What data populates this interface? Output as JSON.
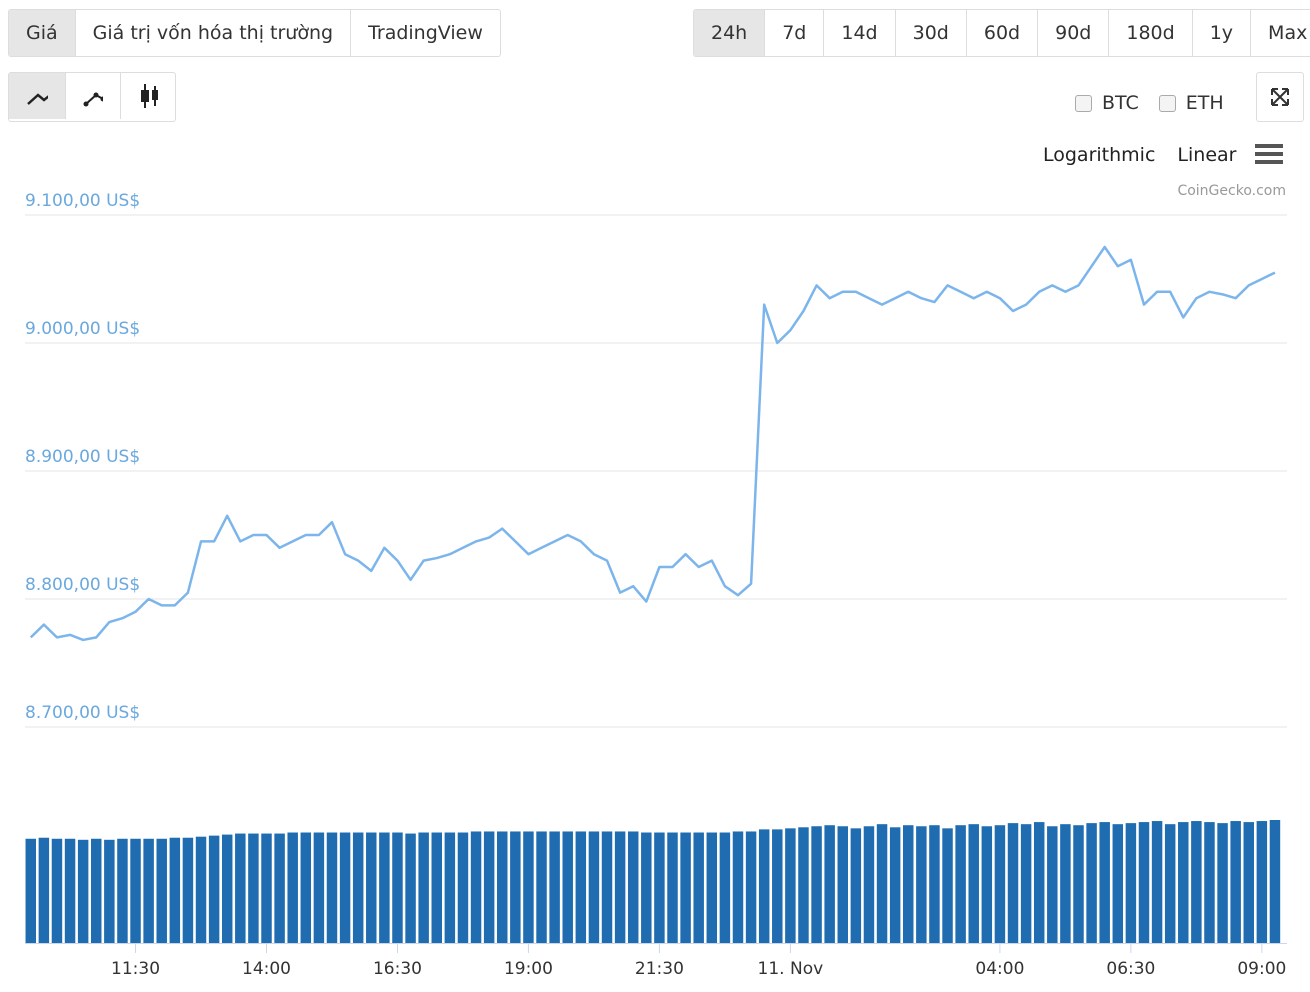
{
  "tabs": [
    "Giá",
    "Giá trị vốn hóa thị trường",
    "TradingView"
  ],
  "ranges": [
    "24h",
    "7d",
    "14d",
    "30d",
    "60d",
    "90d",
    "180d",
    "1y",
    "Max"
  ],
  "compare": [
    "BTC",
    "ETH"
  ],
  "scales": [
    "Logarithmic",
    "Linear"
  ],
  "chart_data": {
    "type": "line",
    "credit": "CoinGecko.com",
    "color": "#7cb5ec",
    "grid": true,
    "x": [
      9.5,
      9.75,
      10,
      10.25,
      10.5,
      10.75,
      11,
      11.25,
      11.5,
      11.75,
      12,
      12.25,
      12.5,
      12.75,
      13,
      13.25,
      13.5,
      13.75,
      14,
      14.25,
      14.5,
      14.75,
      15,
      15.25,
      15.5,
      15.75,
      16,
      16.25,
      16.5,
      16.75,
      17,
      17.25,
      17.5,
      17.75,
      18,
      18.25,
      18.5,
      18.75,
      19,
      19.25,
      19.5,
      19.75,
      20,
      20.25,
      20.5,
      20.75,
      21,
      21.25,
      21.5,
      21.75,
      22,
      22.25,
      22.5,
      22.75,
      23,
      23.25,
      23.5,
      23.75,
      24,
      24.25,
      24.5,
      24.75,
      25,
      25.25,
      25.5,
      25.75,
      26,
      26.25,
      26.5,
      26.75,
      27,
      27.25,
      27.5,
      27.75,
      28,
      28.25,
      28.5,
      28.75,
      29,
      29.25,
      29.5,
      29.75,
      30,
      30.25,
      30.5,
      30.75,
      31,
      31.25,
      31.5,
      31.75,
      32,
      32.25,
      32.5,
      32.75,
      33,
      33.25
    ],
    "values": [
      8770,
      8780,
      8770,
      8772,
      8768,
      8770,
      8782,
      8785,
      8790,
      8800,
      8795,
      8795,
      8805,
      8845,
      8845,
      8865,
      8845,
      8850,
      8850,
      8840,
      8845,
      8850,
      8850,
      8860,
      8835,
      8830,
      8822,
      8840,
      8830,
      8815,
      8830,
      8832,
      8835,
      8840,
      8845,
      8848,
      8855,
      8845,
      8835,
      8840,
      8845,
      8850,
      8845,
      8835,
      8830,
      8805,
      8810,
      8798,
      8825,
      8825,
      8835,
      8825,
      8830,
      8810,
      8803,
      8812,
      9030,
      9000,
      9010,
      9025,
      9045,
      9035,
      9040,
      9040,
      9035,
      9030,
      9035,
      9040,
      9035,
      9032,
      9045,
      9040,
      9035,
      9040,
      9035,
      9025,
      9030,
      9040,
      9045,
      9040,
      9045,
      9060,
      9075,
      9060,
      9065,
      9030,
      9040,
      9040,
      9020,
      9035,
      9040,
      9038,
      9035,
      9045,
      9050,
      9055
    ],
    "xlim": [
      9.39,
      33.48
    ],
    "xticks": [
      {
        "value": 11.5,
        "label": "11:30"
      },
      {
        "value": 14,
        "label": "14:00"
      },
      {
        "value": 16.5,
        "label": "16:30"
      },
      {
        "value": 19,
        "label": "19:00"
      },
      {
        "value": 21.5,
        "label": "21:30"
      },
      {
        "value": 24,
        "label": "11. Nov"
      },
      {
        "value": 28,
        "label": "04:00"
      },
      {
        "value": 30.5,
        "label": "06:30"
      },
      {
        "value": 33,
        "label": "09:00"
      }
    ],
    "ylim": [
      8700,
      9100
    ],
    "yticks": [
      {
        "value": 9100,
        "label": "9.100,00 US$"
      },
      {
        "value": 9000,
        "label": "9.000,00 US$"
      },
      {
        "value": 8900,
        "label": "8.900,00 US$"
      },
      {
        "value": 8800,
        "label": "8.800,00 US$"
      },
      {
        "value": 8700,
        "label": "8.700,00 US$"
      }
    ],
    "volume": {
      "color": "#1f6db0",
      "values": [
        100,
        101,
        100,
        100,
        99,
        100,
        99,
        100,
        100,
        100,
        100,
        101,
        101,
        102,
        103,
        104,
        105,
        105,
        105,
        105,
        106,
        106,
        106,
        106,
        106,
        106,
        106,
        106,
        106,
        105,
        106,
        106,
        106,
        106,
        107,
        107,
        107,
        107,
        107,
        107,
        107,
        107,
        107,
        107,
        107,
        107,
        107,
        106,
        106,
        106,
        106,
        106,
        106,
        106,
        107,
        107,
        109,
        109,
        110,
        111,
        112,
        113,
        112,
        110,
        112,
        114,
        111,
        113,
        112,
        113,
        110,
        113,
        114,
        112,
        113,
        115,
        114,
        116,
        112,
        114,
        113,
        115,
        116,
        114,
        115,
        116,
        117,
        114,
        116,
        117,
        116,
        115,
        117,
        116,
        117,
        118
      ]
    }
  }
}
